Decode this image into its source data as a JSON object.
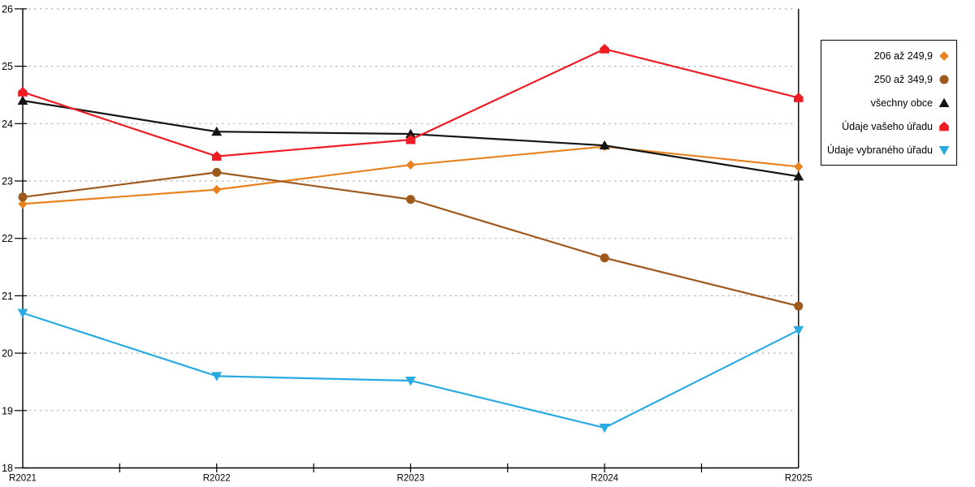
{
  "chart_data": {
    "type": "line",
    "title": "",
    "xlabel": "",
    "ylabel": "",
    "categories": [
      "R2021",
      "R2022",
      "R2023",
      "R2024",
      "R2025"
    ],
    "yticks": [
      "18",
      "19",
      "20",
      "21",
      "22",
      "23",
      "24",
      "25",
      "26"
    ],
    "ylim": [
      18,
      26
    ],
    "grid": "horizontal-dashed",
    "legend_position": "right-outside",
    "series": [
      {
        "name": "206 až 249,9",
        "marker": "diamond",
        "color": "#E8821E",
        "values": [
          22.6,
          22.85,
          23.28,
          23.6,
          23.25
        ]
      },
      {
        "name": "250 až 349,9",
        "marker": "circle",
        "color": "#9E5A1C",
        "values": [
          22.72,
          23.15,
          22.68,
          21.66,
          20.82
        ]
      },
      {
        "name": "všechny obce",
        "marker": "triangle-up",
        "color": "#141414",
        "values": [
          24.4,
          23.86,
          23.82,
          23.62,
          23.08
        ]
      },
      {
        "name": "Údaje vašeho úřadu",
        "marker": "pentagon-up",
        "color": "#EE1C25",
        "values": [
          24.55,
          23.43,
          23.72,
          25.3,
          24.45
        ]
      },
      {
        "name": "Údaje vybraného úřadu",
        "marker": "triangle-down",
        "color": "#29ABE2",
        "values": [
          20.7,
          19.6,
          19.52,
          18.7,
          20.4
        ]
      }
    ]
  },
  "style_colors": {
    "axis": "#000000",
    "gridline": "#b3b3b3",
    "legend_border": "#000000",
    "background": "#ffffff"
  }
}
